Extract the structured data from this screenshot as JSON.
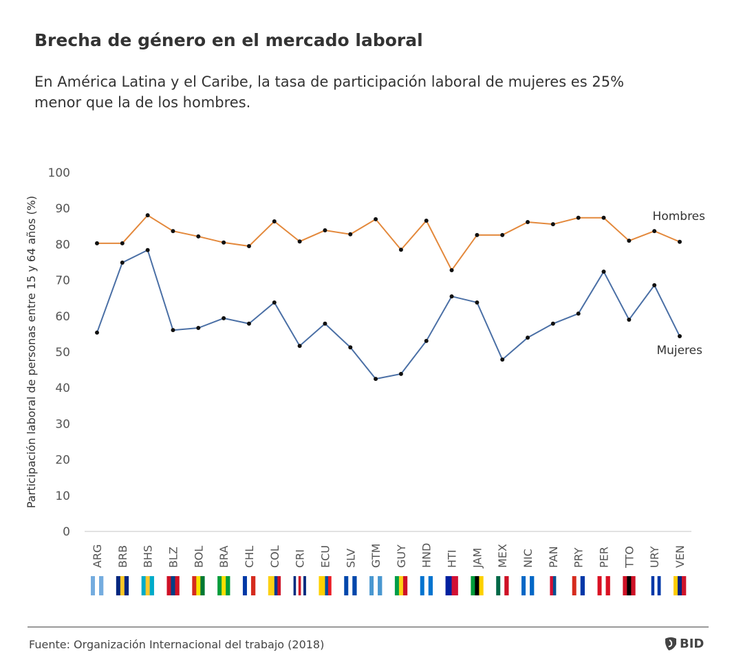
{
  "header": {
    "title": "Brecha de género en el mercado laboral",
    "subtitle": "En América Latina y el Caribe, la tasa de participación laboral de mujeres es 25% menor que la de los hombres."
  },
  "chart_data": {
    "type": "line",
    "ylabel": "Participación laboral de personas entre 15 y 64 años (%)",
    "xlabel": "",
    "ylim": [
      0,
      100
    ],
    "yticks": [
      0,
      10,
      20,
      30,
      40,
      50,
      60,
      70,
      80,
      90,
      100
    ],
    "grid": false,
    "categories": [
      "ARG",
      "BRB",
      "BHS",
      "BLZ",
      "BOL",
      "BRA",
      "CHL",
      "COL",
      "CRI",
      "ECU",
      "SLV",
      "GTM",
      "GUY",
      "HND",
      "HTI",
      "JAM",
      "MEX",
      "NIC",
      "PAN",
      "PRY",
      "PER",
      "TTO",
      "URY",
      "VEN"
    ],
    "series": [
      {
        "name": "Hombres",
        "color": "#e3883b",
        "values": [
          80.3,
          80.3,
          88.1,
          83.7,
          82.2,
          80.5,
          79.5,
          86.4,
          80.8,
          83.9,
          82.8,
          87.0,
          78.5,
          86.6,
          72.8,
          82.6,
          82.6,
          86.2,
          85.6,
          87.4,
          87.4,
          81.0,
          83.7,
          80.7
        ]
      },
      {
        "name": "Mujeres",
        "color": "#4a6fa5",
        "values": [
          55.4,
          74.9,
          78.4,
          56.1,
          56.7,
          59.4,
          57.9,
          63.8,
          51.7,
          57.9,
          51.3,
          42.5,
          43.9,
          53.1,
          65.5,
          63.8,
          47.9,
          54.0,
          57.9,
          60.7,
          72.4,
          59.0,
          68.6,
          54.4
        ]
      }
    ],
    "flags": [
      [
        "#74acdf",
        "#ffffff",
        "#74acdf"
      ],
      [
        "#00267f",
        "#ffc726",
        "#00267f"
      ],
      [
        "#00abc9",
        "#ffc72c",
        "#00abc9"
      ],
      [
        "#ce1126",
        "#003f87",
        "#ce1126"
      ],
      [
        "#d52b1e",
        "#f9e300",
        "#007934"
      ],
      [
        "#009c3b",
        "#ffdf00",
        "#009c3b"
      ],
      [
        "#0039a6",
        "#ffffff",
        "#d52b1e"
      ],
      [
        "#fcd116",
        "#fcd116",
        "#003893",
        "#ce1126"
      ],
      [
        "#002b7f",
        "#ffffff",
        "#ce1126",
        "#ffffff",
        "#002b7f"
      ],
      [
        "#ffd100",
        "#ffd100",
        "#034ea2",
        "#ed1c24"
      ],
      [
        "#0047ab",
        "#ffffff",
        "#0047ab"
      ],
      [
        "#4997d0",
        "#ffffff",
        "#4997d0"
      ],
      [
        "#009e49",
        "#fcd116",
        "#ce1126"
      ],
      [
        "#0073cf",
        "#ffffff",
        "#0073cf"
      ],
      [
        "#00209f",
        "#d21034"
      ],
      [
        "#009b3a",
        "#000000",
        "#fed100"
      ],
      [
        "#006847",
        "#ffffff",
        "#ce1126"
      ],
      [
        "#0067c6",
        "#ffffff",
        "#0067c6"
      ],
      [
        "#ffffff",
        "#d21034",
        "#005293",
        "#ffffff"
      ],
      [
        "#d52b1e",
        "#ffffff",
        "#0038a8"
      ],
      [
        "#d91023",
        "#ffffff",
        "#d91023"
      ],
      [
        "#ce1126",
        "#000000",
        "#ce1126"
      ],
      [
        "#ffffff",
        "#0038a8",
        "#ffffff",
        "#0038a8"
      ],
      [
        "#ffcc00",
        "#00247d",
        "#cf142b"
      ]
    ]
  },
  "footer": {
    "source": "Fuente: Organización Internacional del trabajo (2018)",
    "logo_text": "BID"
  }
}
